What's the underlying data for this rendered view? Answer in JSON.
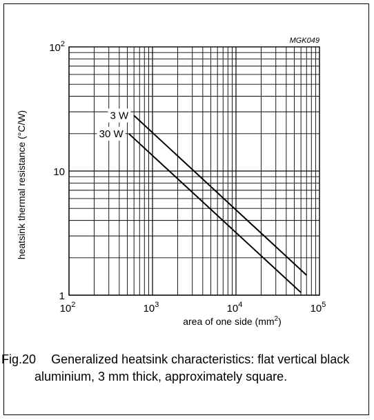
{
  "chart_data": {
    "type": "line",
    "code": "MGK049",
    "xlabel": "area of one side (mm",
    "xlabel_sup": "2",
    "xlabel_end": ")",
    "ylabel": "heatsink thermal resistance (°C/W)",
    "x_scale": "log",
    "y_scale": "log",
    "xlim": [
      100,
      100000
    ],
    "ylim": [
      1,
      100
    ],
    "grid": true,
    "x_ticks": [
      {
        "base": "10",
        "exp": "2",
        "value": 100
      },
      {
        "base": "10",
        "exp": "3",
        "value": 1000
      },
      {
        "base": "10",
        "exp": "4",
        "value": 10000
      },
      {
        "base": "10",
        "exp": "5",
        "value": 100000
      }
    ],
    "y_ticks": [
      {
        "label": "1",
        "value": 1
      },
      {
        "label": "10",
        "value": 10
      },
      {
        "base": "10",
        "exp": "2",
        "value": 100
      }
    ],
    "series": [
      {
        "name": "3 W",
        "x": [
          600,
          70000
        ],
        "y": [
          28,
          1.45
        ]
      },
      {
        "name": "30 W",
        "x": [
          520,
          60000
        ],
        "y": [
          20,
          1.05
        ]
      }
    ]
  },
  "caption": {
    "number": "Fig.20",
    "text": "Generalized heatsink characteristics: flat vertical black aluminium, 3 mm thick, approximately square."
  }
}
